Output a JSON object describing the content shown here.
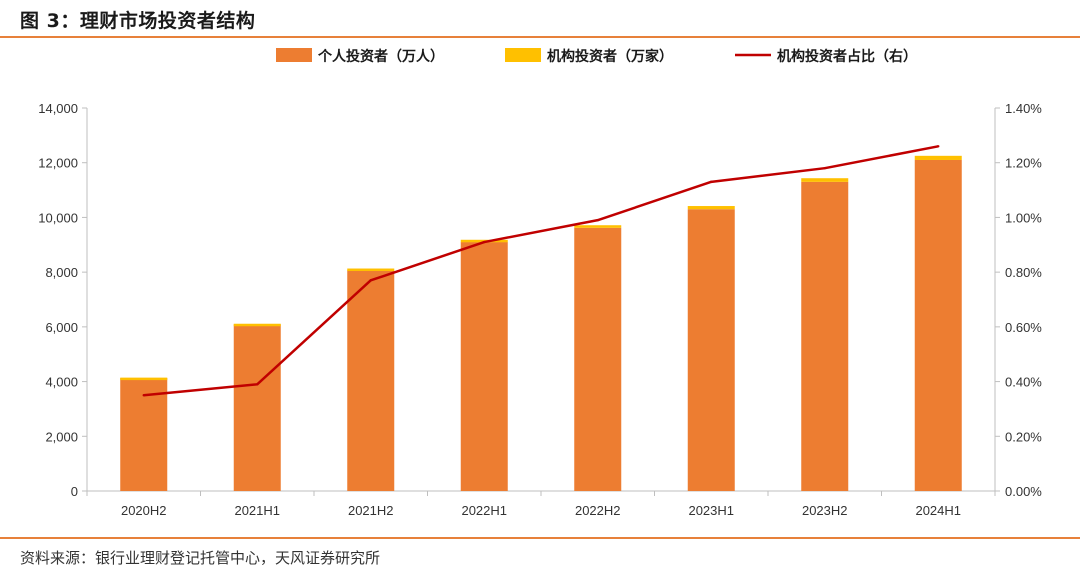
{
  "figure": {
    "title": "图 3：理财市场投资者结构",
    "source": "资料来源：银行业理财登记托管中心，天风证券研究所",
    "rule_color": "#E7813A"
  },
  "chart_data": {
    "type": "bar",
    "stacked": true,
    "categories": [
      "2020H2",
      "2021H1",
      "2021H2",
      "2022H1",
      "2022H2",
      "2023H1",
      "2023H2",
      "2024H1"
    ],
    "series": [
      {
        "name": "个人投资者（万人）",
        "type": "bar",
        "axis": "left",
        "color": "#ED7D31",
        "values": [
          4130,
          6090,
          8070,
          9100,
          9620,
          10300,
          11300,
          12100
        ]
      },
      {
        "name": "机构投资者（万家）",
        "type": "bar",
        "axis": "left",
        "color": "#FFC000",
        "values": [
          14.4,
          23.7,
          62.5,
          83.3,
          95.0,
          116.6,
          133.6,
          152.2
        ]
      },
      {
        "name": "机构投资者占比（右）",
        "type": "line",
        "axis": "right",
        "color": "#C00000",
        "values": [
          0.35,
          0.39,
          0.77,
          0.91,
          0.99,
          1.13,
          1.18,
          1.26
        ]
      }
    ],
    "y_left": {
      "min": 0,
      "max": 14000,
      "step": 2000,
      "tick_labels": [
        "0",
        "2,000",
        "4,000",
        "6,000",
        "8,000",
        "10,000",
        "12,000",
        "14,000"
      ]
    },
    "y_right": {
      "min": 0,
      "max": 1.4,
      "step": 0.2,
      "tick_labels": [
        "0.00%",
        "0.20%",
        "0.40%",
        "0.60%",
        "0.80%",
        "1.00%",
        "1.20%",
        "1.40%"
      ]
    },
    "legend_position": "top-center",
    "grid": false
  }
}
